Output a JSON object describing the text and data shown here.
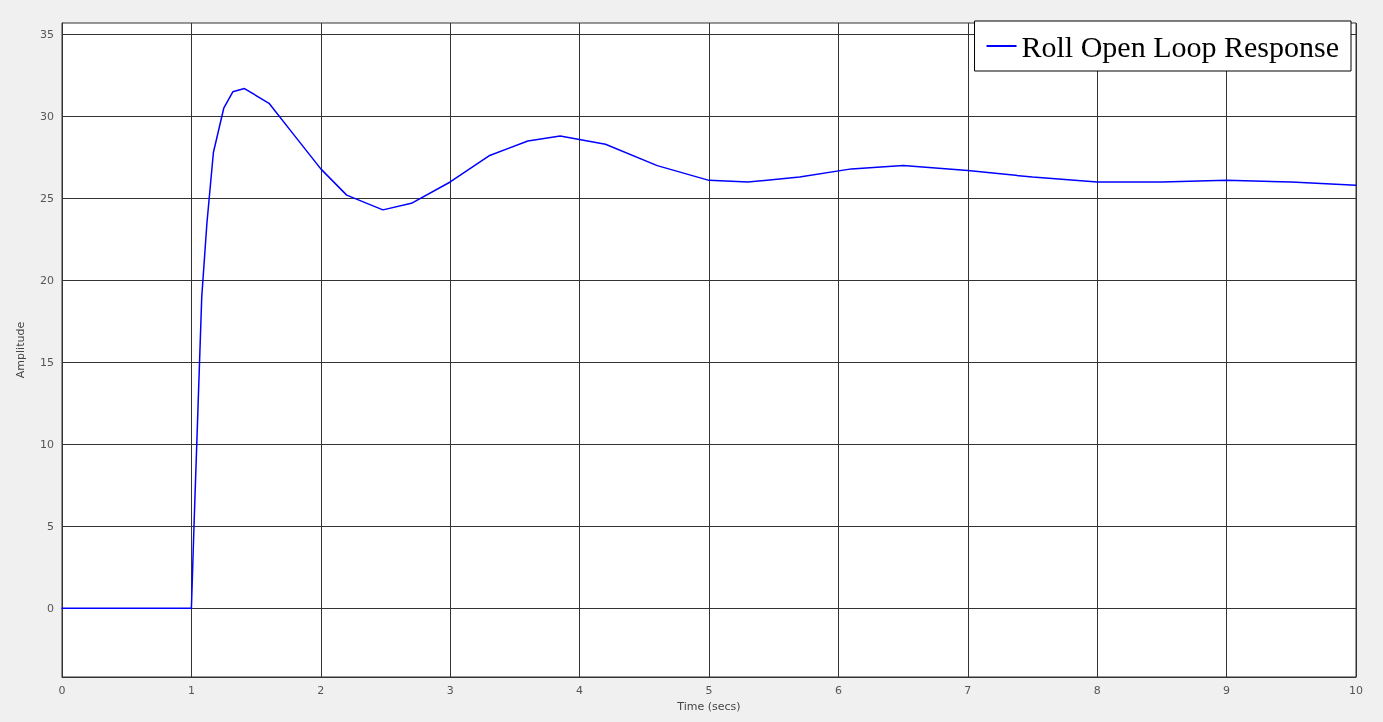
{
  "chart_data": {
    "type": "line",
    "xlabel": "Time (secs)",
    "ylabel": "Amplitude",
    "x": [
      0,
      1,
      1.02,
      1.05,
      1.08,
      1.12,
      1.17,
      1.25,
      1.32,
      1.41,
      1.6,
      1.8,
      2,
      2.2,
      2.48,
      2.7,
      3,
      3.3,
      3.6,
      3.85,
      4.2,
      4.6,
      5,
      5.3,
      5.7,
      6.1,
      6.5,
      7,
      7.5,
      8,
      8.5,
      9,
      9.5,
      10
    ],
    "series": [
      {
        "name": "Roll Open Loop Response",
        "color": "#0000ff",
        "values": [
          0,
          0,
          5,
          12,
          19,
          23.5,
          27.8,
          30.5,
          31.5,
          31.7,
          30.8,
          28.8,
          26.8,
          25.2,
          24.3,
          24.7,
          26,
          27.6,
          28.5,
          28.8,
          28.3,
          27,
          26.1,
          26,
          26.3,
          26.8,
          27,
          26.7,
          26.3,
          26,
          26,
          26.1,
          26,
          25.8
        ]
      }
    ],
    "xlim": [
      0,
      10
    ],
    "xticks": [
      0,
      1,
      2,
      3,
      4,
      5,
      6,
      7,
      8,
      9,
      10
    ],
    "ylim": [
      -4.2,
      35.7
    ],
    "yticks": [
      0,
      5,
      10,
      15,
      20,
      25,
      30,
      35
    ],
    "grid": true,
    "legend": "top right",
    "marker": "none",
    "line_style": "solid"
  }
}
